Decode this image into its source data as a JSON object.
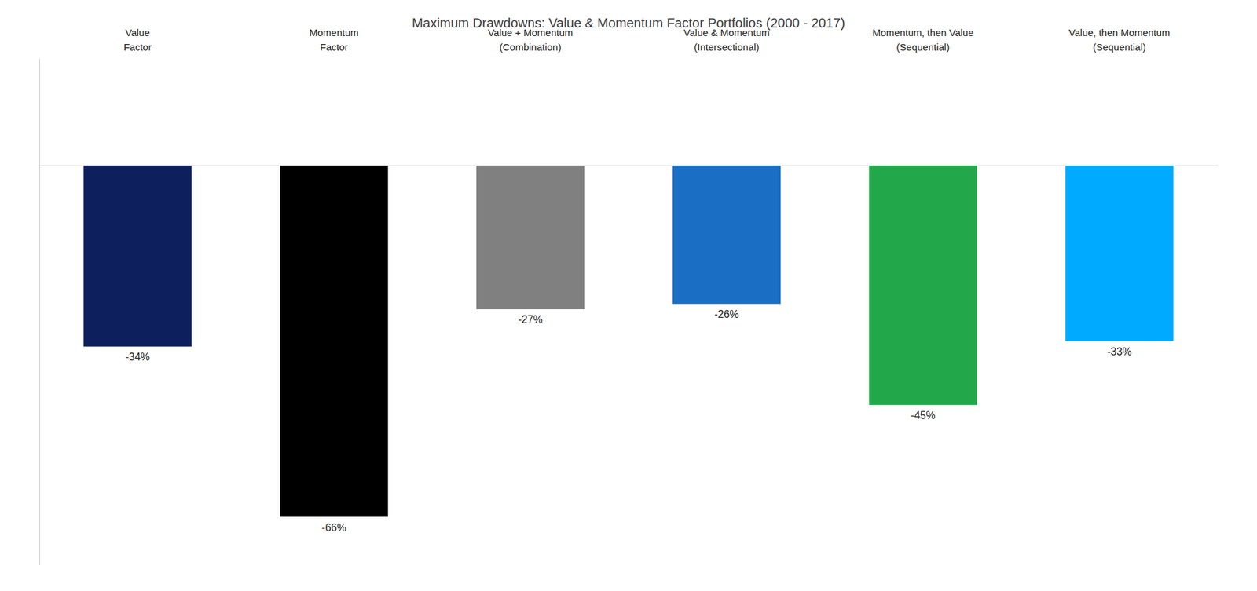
{
  "chart_data": {
    "type": "bar",
    "title": "Maximum Drawdowns: Value & Momentum Factor Portfolios (2000 - 2017)",
    "categories": [
      "Value\nFactor",
      "Momentum\nFactor",
      "Value + Momentum\n(Combination)",
      "Value & Momentum\n(Intersectional)",
      "Momentum, then Value\n(Sequential)",
      "Value, then Momentum\n(Sequential)"
    ],
    "values": [
      -34,
      -66,
      -27,
      -26,
      -45,
      -33
    ],
    "value_labels": [
      "-34%",
      "-66%",
      "-27%",
      "-26%",
      "-45%",
      "-33%"
    ],
    "data_labels": true,
    "colors": [
      "#0d1f5c",
      "#000000",
      "#808080",
      "#1a6fc4",
      "#22a84a",
      "#00aaff"
    ],
    "ylim": [
      -75,
      20
    ],
    "tick_labels": false,
    "grid": false
  }
}
